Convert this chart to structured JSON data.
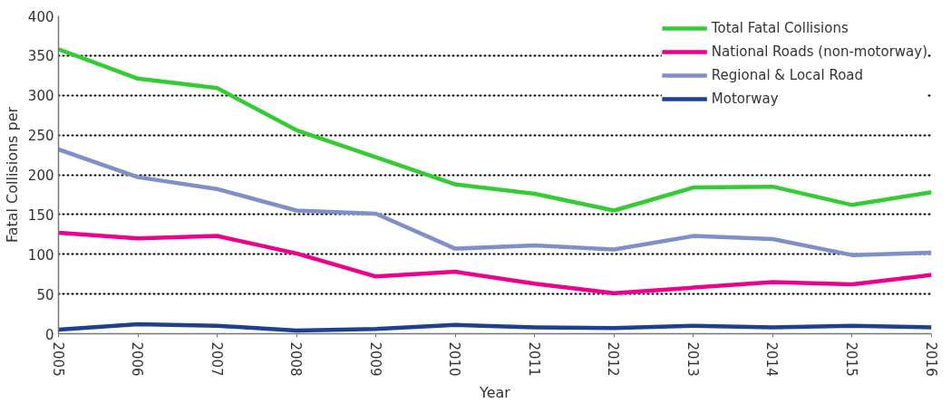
{
  "chart_data": {
    "type": "line",
    "xlabel": "Year",
    "ylabel": "Fatal Collisions per",
    "x": [
      2005,
      2006,
      2007,
      2008,
      2009,
      2010,
      2011,
      2012,
      2013,
      2014,
      2015,
      2016
    ],
    "xlim": [
      2005,
      2016
    ],
    "xticks": [
      2005,
      2006,
      2007,
      2008,
      2009,
      2010,
      2011,
      2012,
      2013,
      2014,
      2015,
      2016
    ],
    "ylim": [
      0,
      400
    ],
    "yticks": [
      0,
      50,
      100,
      150,
      200,
      250,
      300,
      350,
      400
    ],
    "grid": "y",
    "legend": "top right",
    "line_style": "solid",
    "series": [
      {
        "name": "Total Fatal Collisions",
        "color": "#33cc33",
        "values": [
          358,
          321,
          309,
          256,
          222,
          188,
          176,
          155,
          184,
          185,
          162,
          178
        ]
      },
      {
        "name": "National Roads (non-motorway)",
        "color": "#ec008c",
        "values": [
          127,
          120,
          123,
          101,
          72,
          78,
          63,
          51,
          58,
          65,
          62,
          74
        ]
      },
      {
        "name": "Regional & Local Road",
        "color": "#7f8fc8",
        "values": [
          232,
          197,
          182,
          155,
          151,
          107,
          111,
          106,
          123,
          119,
          99,
          102
        ]
      },
      {
        "name": "Motorway",
        "color": "#1f3f8f",
        "values": [
          5,
          12,
          10,
          4,
          6,
          11,
          8,
          7,
          10,
          8,
          10,
          8
        ]
      }
    ]
  }
}
